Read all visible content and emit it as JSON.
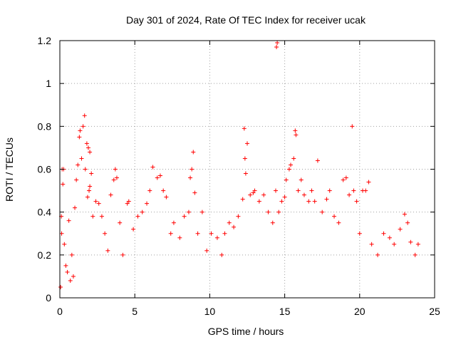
{
  "chart_data": {
    "type": "scatter",
    "title": "Day 301 of 2024, Rate Of TEC Index for receiver ucak",
    "xlabel": "GPS time / hours",
    "ylabel": "ROTI / TECUs",
    "xlim": [
      0,
      25
    ],
    "ylim": [
      0,
      1.2
    ],
    "xticks": [
      0,
      5,
      10,
      15,
      20,
      25
    ],
    "xtick_labels": [
      "0",
      "5",
      "10",
      "15",
      "20",
      "25"
    ],
    "yticks": [
      0,
      0.2,
      0.4,
      0.6,
      0.8,
      1.0,
      1.2
    ],
    "ytick_labels": [
      "0",
      "0.2",
      "0.4",
      "0.6",
      "0.8",
      "1",
      "1.2"
    ],
    "grid": true,
    "marker": "+",
    "colors": {
      "series": "#ff0000",
      "grid": "#a0a0a0",
      "axis": "#000000"
    },
    "series": [
      {
        "points": [
          [
            0.05,
            0.05
          ],
          [
            0.1,
            0.38
          ],
          [
            0.12,
            0.3
          ],
          [
            0.15,
            0.6
          ],
          [
            0.25,
            0.6
          ],
          [
            0.2,
            0.53
          ],
          [
            0.3,
            0.25
          ],
          [
            0.4,
            0.15
          ],
          [
            0.5,
            0.12
          ],
          [
            0.6,
            0.36
          ],
          [
            0.7,
            0.08
          ],
          [
            0.8,
            0.2
          ],
          [
            0.9,
            0.1
          ],
          [
            1.0,
            0.42
          ],
          [
            1.1,
            0.55
          ],
          [
            1.2,
            0.62
          ],
          [
            1.3,
            0.75
          ],
          [
            1.35,
            0.78
          ],
          [
            1.45,
            0.65
          ],
          [
            1.55,
            0.8
          ],
          [
            1.65,
            0.85
          ],
          [
            1.7,
            0.6
          ],
          [
            1.8,
            0.72
          ],
          [
            1.9,
            0.7
          ],
          [
            2.0,
            0.68
          ],
          [
            2.1,
            0.58
          ],
          [
            2.0,
            0.52
          ],
          [
            1.95,
            0.5
          ],
          [
            1.85,
            0.47
          ],
          [
            2.2,
            0.38
          ],
          [
            2.4,
            0.45
          ],
          [
            2.6,
            0.44
          ],
          [
            2.8,
            0.38
          ],
          [
            3.0,
            0.3
          ],
          [
            3.2,
            0.22
          ],
          [
            3.4,
            0.48
          ],
          [
            3.6,
            0.55
          ],
          [
            3.7,
            0.6
          ],
          [
            3.8,
            0.56
          ],
          [
            4.0,
            0.35
          ],
          [
            4.2,
            0.2
          ],
          [
            4.5,
            0.44
          ],
          [
            4.6,
            0.45
          ],
          [
            4.9,
            0.32
          ],
          [
            5.2,
            0.38
          ],
          [
            5.5,
            0.4
          ],
          [
            5.8,
            0.44
          ],
          [
            6.0,
            0.5
          ],
          [
            6.2,
            0.61
          ],
          [
            6.5,
            0.56
          ],
          [
            6.7,
            0.57
          ],
          [
            6.9,
            0.5
          ],
          [
            7.1,
            0.47
          ],
          [
            7.4,
            0.3
          ],
          [
            7.6,
            0.35
          ],
          [
            8.0,
            0.28
          ],
          [
            8.3,
            0.38
          ],
          [
            8.6,
            0.4
          ],
          [
            8.8,
            0.6
          ],
          [
            8.9,
            0.68
          ],
          [
            8.7,
            0.56
          ],
          [
            9.0,
            0.49
          ],
          [
            9.2,
            0.3
          ],
          [
            9.5,
            0.4
          ],
          [
            9.8,
            0.22
          ],
          [
            10.1,
            0.3
          ],
          [
            10.5,
            0.28
          ],
          [
            10.8,
            0.2
          ],
          [
            11.0,
            0.3
          ],
          [
            11.3,
            0.35
          ],
          [
            11.6,
            0.33
          ],
          [
            11.9,
            0.38
          ],
          [
            12.2,
            0.46
          ],
          [
            12.3,
            0.79
          ],
          [
            12.35,
            0.65
          ],
          [
            12.4,
            0.58
          ],
          [
            12.5,
            0.72
          ],
          [
            12.7,
            0.48
          ],
          [
            12.9,
            0.49
          ],
          [
            13.0,
            0.5
          ],
          [
            13.3,
            0.45
          ],
          [
            13.6,
            0.48
          ],
          [
            13.9,
            0.4
          ],
          [
            14.2,
            0.35
          ],
          [
            14.45,
            1.17
          ],
          [
            14.5,
            1.19
          ],
          [
            14.4,
            0.5
          ],
          [
            14.6,
            0.4
          ],
          [
            14.8,
            0.45
          ],
          [
            15.0,
            0.47
          ],
          [
            15.1,
            0.55
          ],
          [
            15.3,
            0.6
          ],
          [
            15.4,
            0.62
          ],
          [
            15.6,
            0.65
          ],
          [
            15.7,
            0.78
          ],
          [
            15.75,
            0.76
          ],
          [
            15.9,
            0.5
          ],
          [
            16.1,
            0.55
          ],
          [
            16.3,
            0.48
          ],
          [
            16.6,
            0.45
          ],
          [
            16.8,
            0.5
          ],
          [
            17.0,
            0.45
          ],
          [
            17.2,
            0.64
          ],
          [
            17.5,
            0.4
          ],
          [
            17.8,
            0.46
          ],
          [
            18.0,
            0.5
          ],
          [
            18.3,
            0.38
          ],
          [
            18.6,
            0.35
          ],
          [
            18.9,
            0.55
          ],
          [
            19.1,
            0.56
          ],
          [
            19.3,
            0.48
          ],
          [
            19.5,
            0.8
          ],
          [
            19.6,
            0.5
          ],
          [
            19.8,
            0.45
          ],
          [
            20.0,
            0.3
          ],
          [
            20.2,
            0.5
          ],
          [
            20.4,
            0.5
          ],
          [
            20.6,
            0.54
          ],
          [
            20.8,
            0.25
          ],
          [
            21.2,
            0.2
          ],
          [
            21.6,
            0.3
          ],
          [
            22.0,
            0.28
          ],
          [
            22.3,
            0.25
          ],
          [
            22.7,
            0.32
          ],
          [
            23.0,
            0.39
          ],
          [
            23.2,
            0.35
          ],
          [
            23.4,
            0.26
          ],
          [
            23.7,
            0.2
          ],
          [
            23.9,
            0.25
          ]
        ]
      }
    ]
  }
}
